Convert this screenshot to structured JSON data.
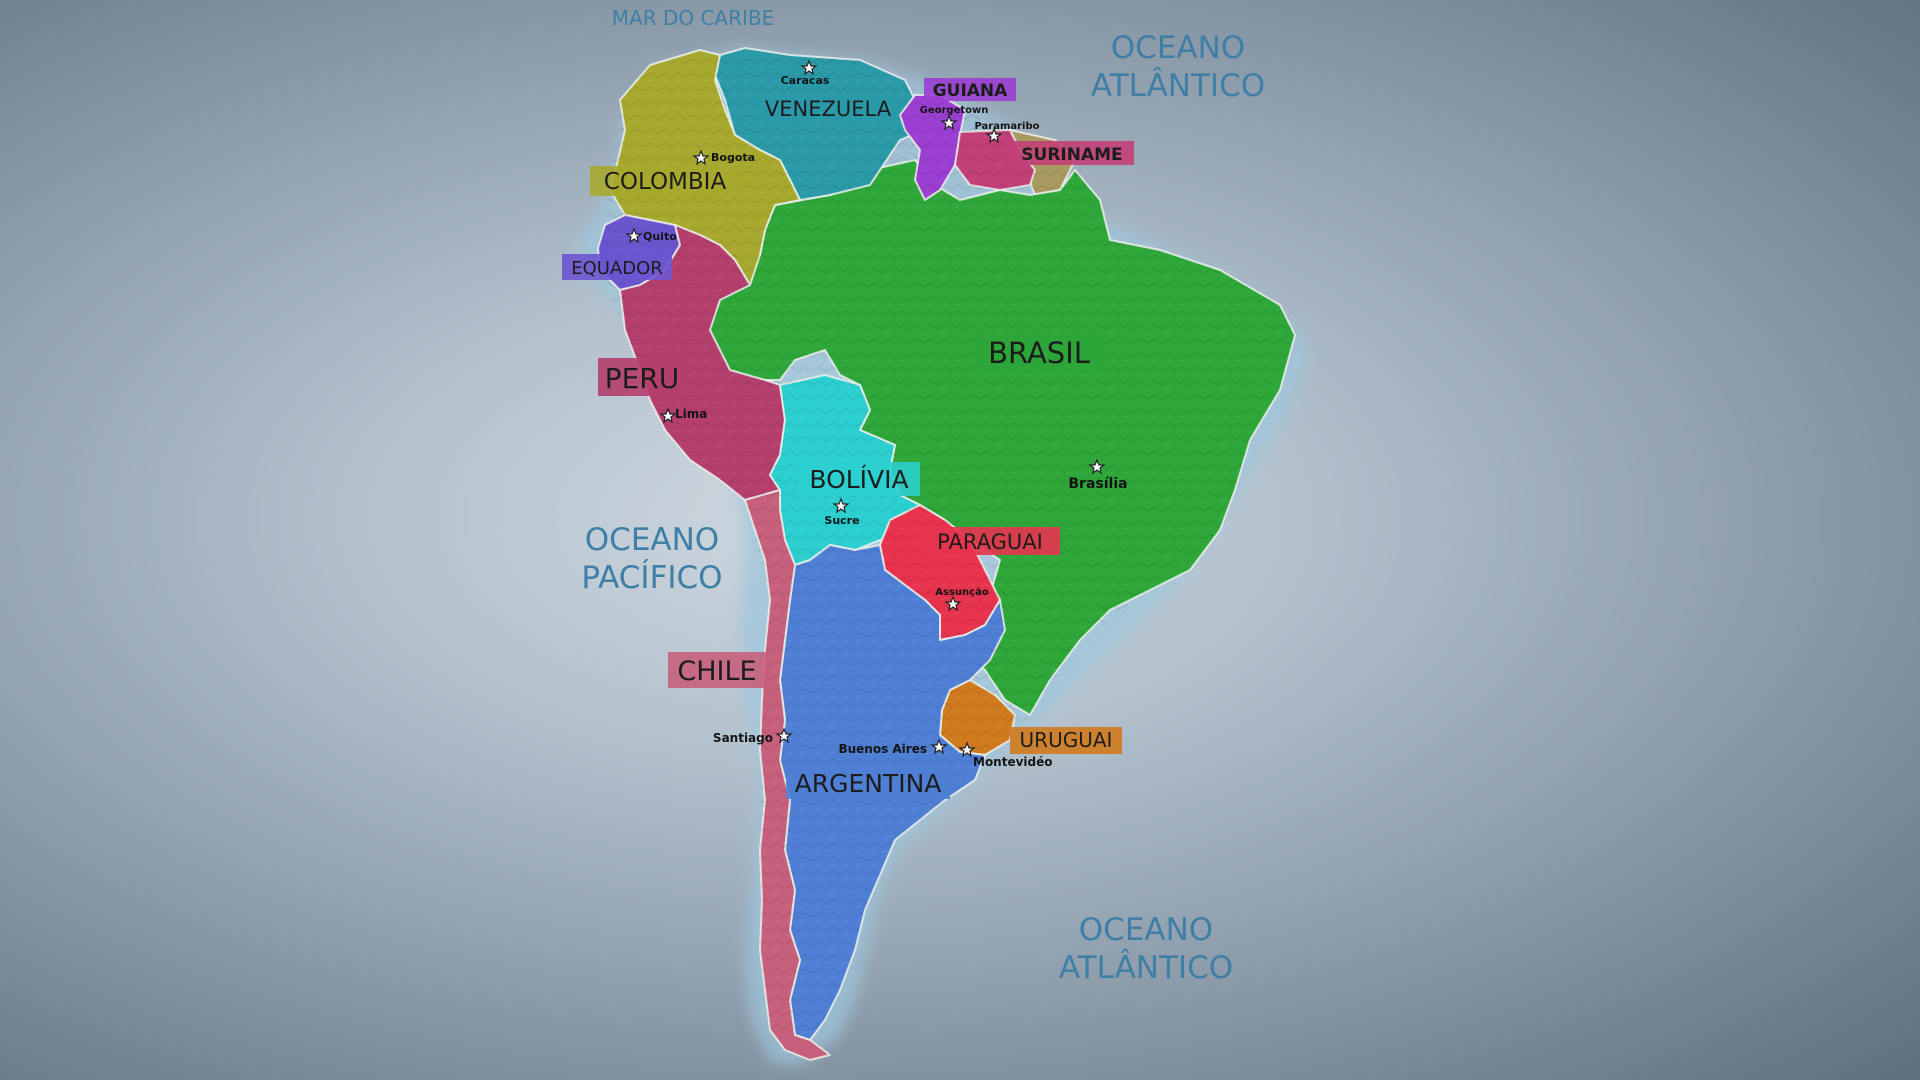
{
  "map": {
    "water_labels": {
      "caribbean": "MAR DO CARIBE",
      "atlantic_north_line1": "OCEANO",
      "atlantic_north_line2": "ATLÂNTICO",
      "pacific_line1": "OCEANO",
      "pacific_line2": "PACÍFICO",
      "atlantic_south_line1": "OCEANO",
      "atlantic_south_line2": "ATLÂNTICO"
    },
    "countries": {
      "venezuela": {
        "name": "VENEZUELA",
        "capital": "Caracas",
        "color": "#2a9aa8"
      },
      "guiana": {
        "name": "GUIANA",
        "capital": "Georgetown",
        "color": "#9a3fd1"
      },
      "suriname": {
        "name": "SURINAME",
        "capital": "Paramaribo",
        "color": "#c23f78"
      },
      "colombia": {
        "name": "COLOMBIA",
        "capital": "Bogota",
        "color": "#a7a82e"
      },
      "equador": {
        "name": "EQUADOR",
        "capital": "Quito",
        "color": "#6b55cf"
      },
      "peru": {
        "name": "PERU",
        "capital": "Lima",
        "color": "#b43f6c"
      },
      "brasil": {
        "name": "BRASIL",
        "capital": "Brasília",
        "color": "#2ea63a"
      },
      "bolivia": {
        "name": "BOLÍVIA",
        "capital": "Sucre",
        "color": "#2ccfcf"
      },
      "paraguai": {
        "name": "PARAGUAI",
        "capital": "Assunção",
        "color": "#e8334f"
      },
      "chile": {
        "name": "CHILE",
        "capital": "Santiago",
        "color": "#c7607c"
      },
      "argentina": {
        "name": "ARGENTINA",
        "capital": "Buenos Aires",
        "color": "#4f7fd4"
      },
      "uruguai": {
        "name": "URUGUAI",
        "capital": "Montevidéo",
        "color": "#d07a1e"
      },
      "guiana_francesa": {
        "color": "#a89a60"
      }
    }
  }
}
